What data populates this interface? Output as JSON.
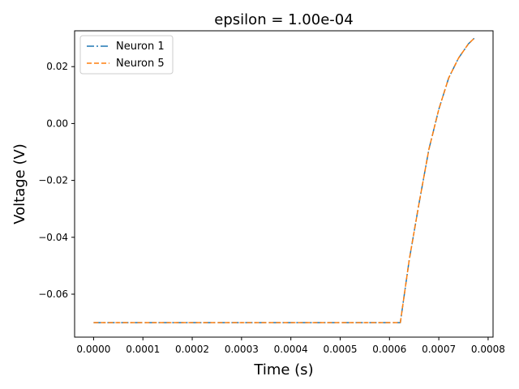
{
  "chart_data": {
    "type": "line",
    "title": "epsilon = 1.00e-04",
    "xlabel": "Time (s)",
    "ylabel": "Voltage (V)",
    "xlim": [
      -3.85e-05,
      0.00081
    ],
    "ylim": [
      -0.0751,
      0.0326
    ],
    "xticks": [
      0.0,
      0.0001,
      0.0002,
      0.0003,
      0.0004,
      0.0005,
      0.0006,
      0.0007,
      0.0008
    ],
    "xtick_labels": [
      "0.0000",
      "0.0001",
      "0.0002",
      "0.0003",
      "0.0004",
      "0.0005",
      "0.0006",
      "0.0007",
      "0.0008"
    ],
    "yticks": [
      -0.06,
      -0.04,
      -0.02,
      0.0,
      0.02
    ],
    "ytick_labels": [
      "−0.06",
      "−0.04",
      "−0.02",
      "0.00",
      "0.02"
    ],
    "grid": false,
    "legend": "top-left",
    "series": [
      {
        "name": "Neuron 1",
        "color": "#1f77b4",
        "linestyle": "dashdot",
        "x": [
          0.0,
          0.0001,
          0.0002,
          0.0003,
          0.0004,
          0.0005,
          0.0006,
          0.000622,
          0.00064,
          0.00066,
          0.00068,
          0.0007,
          0.00072,
          0.00074,
          0.00076,
          0.000772
        ],
        "y": [
          -0.07,
          -0.07,
          -0.07,
          -0.07,
          -0.07,
          -0.07,
          -0.07,
          -0.07,
          -0.048,
          -0.028,
          -0.009,
          0.005,
          0.016,
          0.023,
          0.028,
          0.03
        ]
      },
      {
        "name": "Neuron 5",
        "color": "#ff7f0e",
        "linestyle": "dashed",
        "x": [
          0.0,
          0.0001,
          0.0002,
          0.0003,
          0.0004,
          0.0005,
          0.0006,
          0.000622,
          0.00064,
          0.00066,
          0.00068,
          0.0007,
          0.00072,
          0.00074,
          0.00076,
          0.000772
        ],
        "y": [
          -0.07,
          -0.07,
          -0.07,
          -0.07,
          -0.07,
          -0.07,
          -0.07,
          -0.07,
          -0.048,
          -0.028,
          -0.009,
          0.005,
          0.016,
          0.023,
          0.028,
          0.03
        ]
      }
    ]
  }
}
